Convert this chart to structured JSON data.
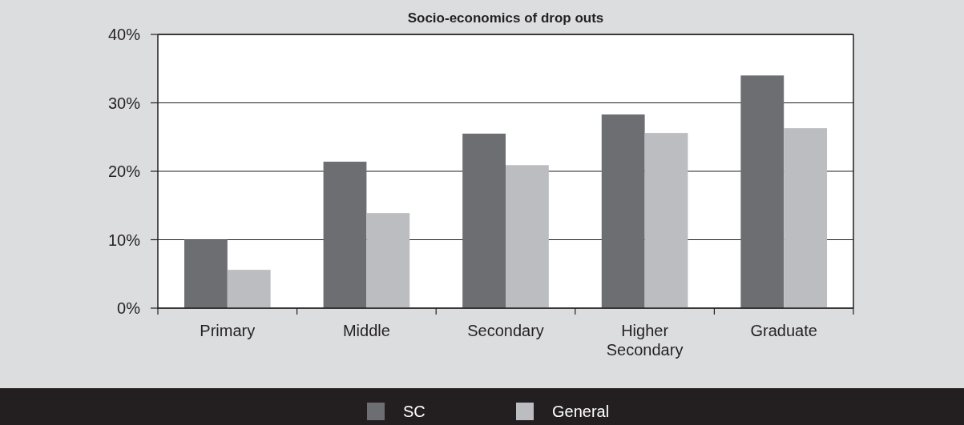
{
  "chart_data": {
    "type": "bar",
    "title": "Socio-economics of drop outs",
    "categories": [
      "Primary",
      "Middle",
      "Secondary",
      "Higher Secondary",
      "Graduate"
    ],
    "series": [
      {
        "name": "SC",
        "color": "#6d6e72",
        "values": [
          10,
          21.4,
          25.5,
          28.3,
          34.0
        ]
      },
      {
        "name": "General",
        "color": "#bcbdc1",
        "values": [
          5.6,
          13.9,
          20.9,
          25.6,
          26.3
        ]
      }
    ],
    "ylim": [
      0,
      40
    ],
    "yticks": [
      {
        "value": 0,
        "label": "0%"
      },
      {
        "value": 10,
        "label": "10%"
      },
      {
        "value": 20,
        "label": "20%"
      },
      {
        "value": 30,
        "label": "30%"
      },
      {
        "value": 40,
        "label": "40%"
      }
    ],
    "grid": "y",
    "legend": "bottom"
  }
}
